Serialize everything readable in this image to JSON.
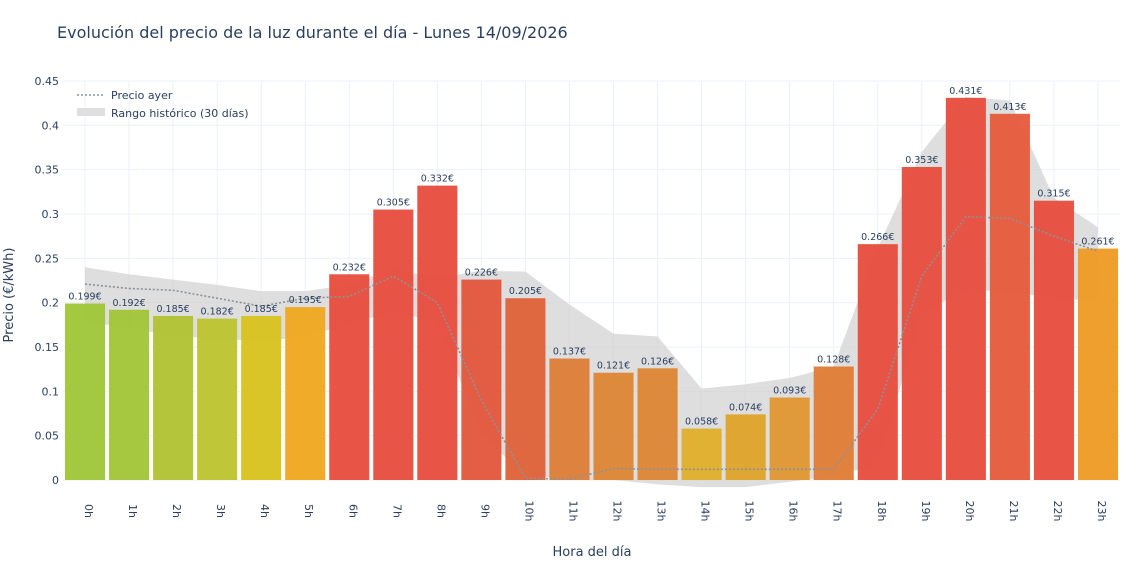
{
  "chart_data": {
    "type": "bar",
    "title": "Evolución del precio de la luz durante el día - Lunes 14/09/2026",
    "xlabel": "Hora del día",
    "ylabel": "Precio (€/kWh)",
    "ylim": [
      0,
      0.45
    ],
    "yticks": [
      0,
      0.05,
      0.1,
      0.15,
      0.2,
      0.25,
      0.3,
      0.35,
      0.4,
      0.45
    ],
    "ytick_labels": [
      "0",
      "0.05",
      "0.1",
      "0.15",
      "0.2",
      "0.25",
      "0.3",
      "0.35",
      "0.4",
      "0.45"
    ],
    "grid": true,
    "legend_position": "top-left",
    "categories": [
      "0h",
      "1h",
      "2h",
      "3h",
      "4h",
      "5h",
      "6h",
      "7h",
      "8h",
      "9h",
      "10h",
      "11h",
      "12h",
      "13h",
      "14h",
      "15h",
      "16h",
      "17h",
      "18h",
      "19h",
      "20h",
      "21h",
      "22h",
      "23h"
    ],
    "values": [
      0.199,
      0.192,
      0.185,
      0.182,
      0.185,
      0.195,
      0.232,
      0.305,
      0.332,
      0.226,
      0.205,
      0.137,
      0.121,
      0.126,
      0.058,
      0.074,
      0.093,
      0.128,
      0.266,
      0.353,
      0.431,
      0.413,
      0.315,
      0.261
    ],
    "bar_labels": [
      "0.199€",
      "0.192€",
      "0.185€",
      "0.182€",
      "0.185€",
      "0.195€",
      "0.232€",
      "0.305€",
      "0.332€",
      "0.226€",
      "0.205€",
      "0.137€",
      "0.121€",
      "0.126€",
      "0.058€",
      "0.074€",
      "0.093€",
      "0.128€",
      "0.266€",
      "0.353€",
      "0.431€",
      "0.413€",
      "0.315€",
      "0.261€"
    ],
    "bar_colors": [
      "#9ec637",
      "#a1c436",
      "#b0c232",
      "#bcc42d",
      "#d8c21c",
      "#efa81e",
      "#e74c3c",
      "#e74c3c",
      "#e74c3c",
      "#e2553a",
      "#de6138",
      "#dd7d36",
      "#dc8534",
      "#dc8534",
      "#dfae28",
      "#dfa228",
      "#df9630",
      "#df7c34",
      "#e74c3c",
      "#e74c3c",
      "#e74c3c",
      "#e6593a",
      "#e74c3c",
      "#ee9a22"
    ],
    "series": [
      {
        "name": "Precio ayer",
        "style": "dotted-line",
        "color": "#8a9299",
        "values": [
          0.221,
          0.216,
          0.214,
          0.205,
          0.196,
          0.205,
          0.207,
          0.23,
          0.2,
          0.09,
          0.002,
          0.001,
          0.013,
          0.012,
          0.012,
          0.012,
          0.012,
          0.012,
          0.08,
          0.23,
          0.297,
          0.295,
          0.275,
          0.258
        ]
      },
      {
        "name": "Rango histórico (30 días)",
        "style": "band",
        "color": "#d3d3d3",
        "upper": [
          0.24,
          0.232,
          0.226,
          0.22,
          0.213,
          0.213,
          0.22,
          0.238,
          0.228,
          0.236,
          0.235,
          0.198,
          0.165,
          0.162,
          0.103,
          0.108,
          0.115,
          0.128,
          0.262,
          0.37,
          0.432,
          0.428,
          0.318,
          0.285
        ],
        "lower": [
          0.178,
          0.172,
          0.162,
          0.16,
          0.156,
          0.162,
          0.176,
          0.19,
          0.178,
          0.05,
          0.006,
          0.0,
          0.0,
          -0.005,
          -0.008,
          -0.008,
          -0.002,
          0.004,
          0.018,
          0.188,
          0.215,
          0.212,
          0.205,
          0.202
        ]
      }
    ]
  }
}
